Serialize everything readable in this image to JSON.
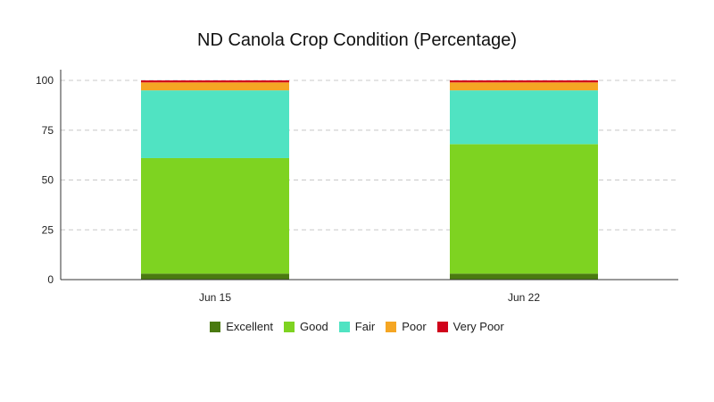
{
  "chart_data": {
    "type": "bar",
    "stacked": true,
    "title": "ND Canola Crop Condition (Percentage)",
    "categories": [
      "Jun 15",
      "Jun 22"
    ],
    "series": [
      {
        "name": "Excellent",
        "color": "#4a7a10",
        "values": [
          3,
          3
        ]
      },
      {
        "name": "Good",
        "color": "#7ed321",
        "values": [
          58,
          65
        ]
      },
      {
        "name": "Fair",
        "color": "#50e3c2",
        "values": [
          34,
          27
        ]
      },
      {
        "name": "Poor",
        "color": "#f5a623",
        "values": [
          4,
          4
        ]
      },
      {
        "name": "Very Poor",
        "color": "#d0021b",
        "values": [
          1,
          1
        ]
      }
    ],
    "ylim": [
      0,
      100
    ],
    "yticks": [
      0,
      25,
      50,
      75,
      100
    ],
    "grid": true,
    "legend_position": "bottom"
  }
}
